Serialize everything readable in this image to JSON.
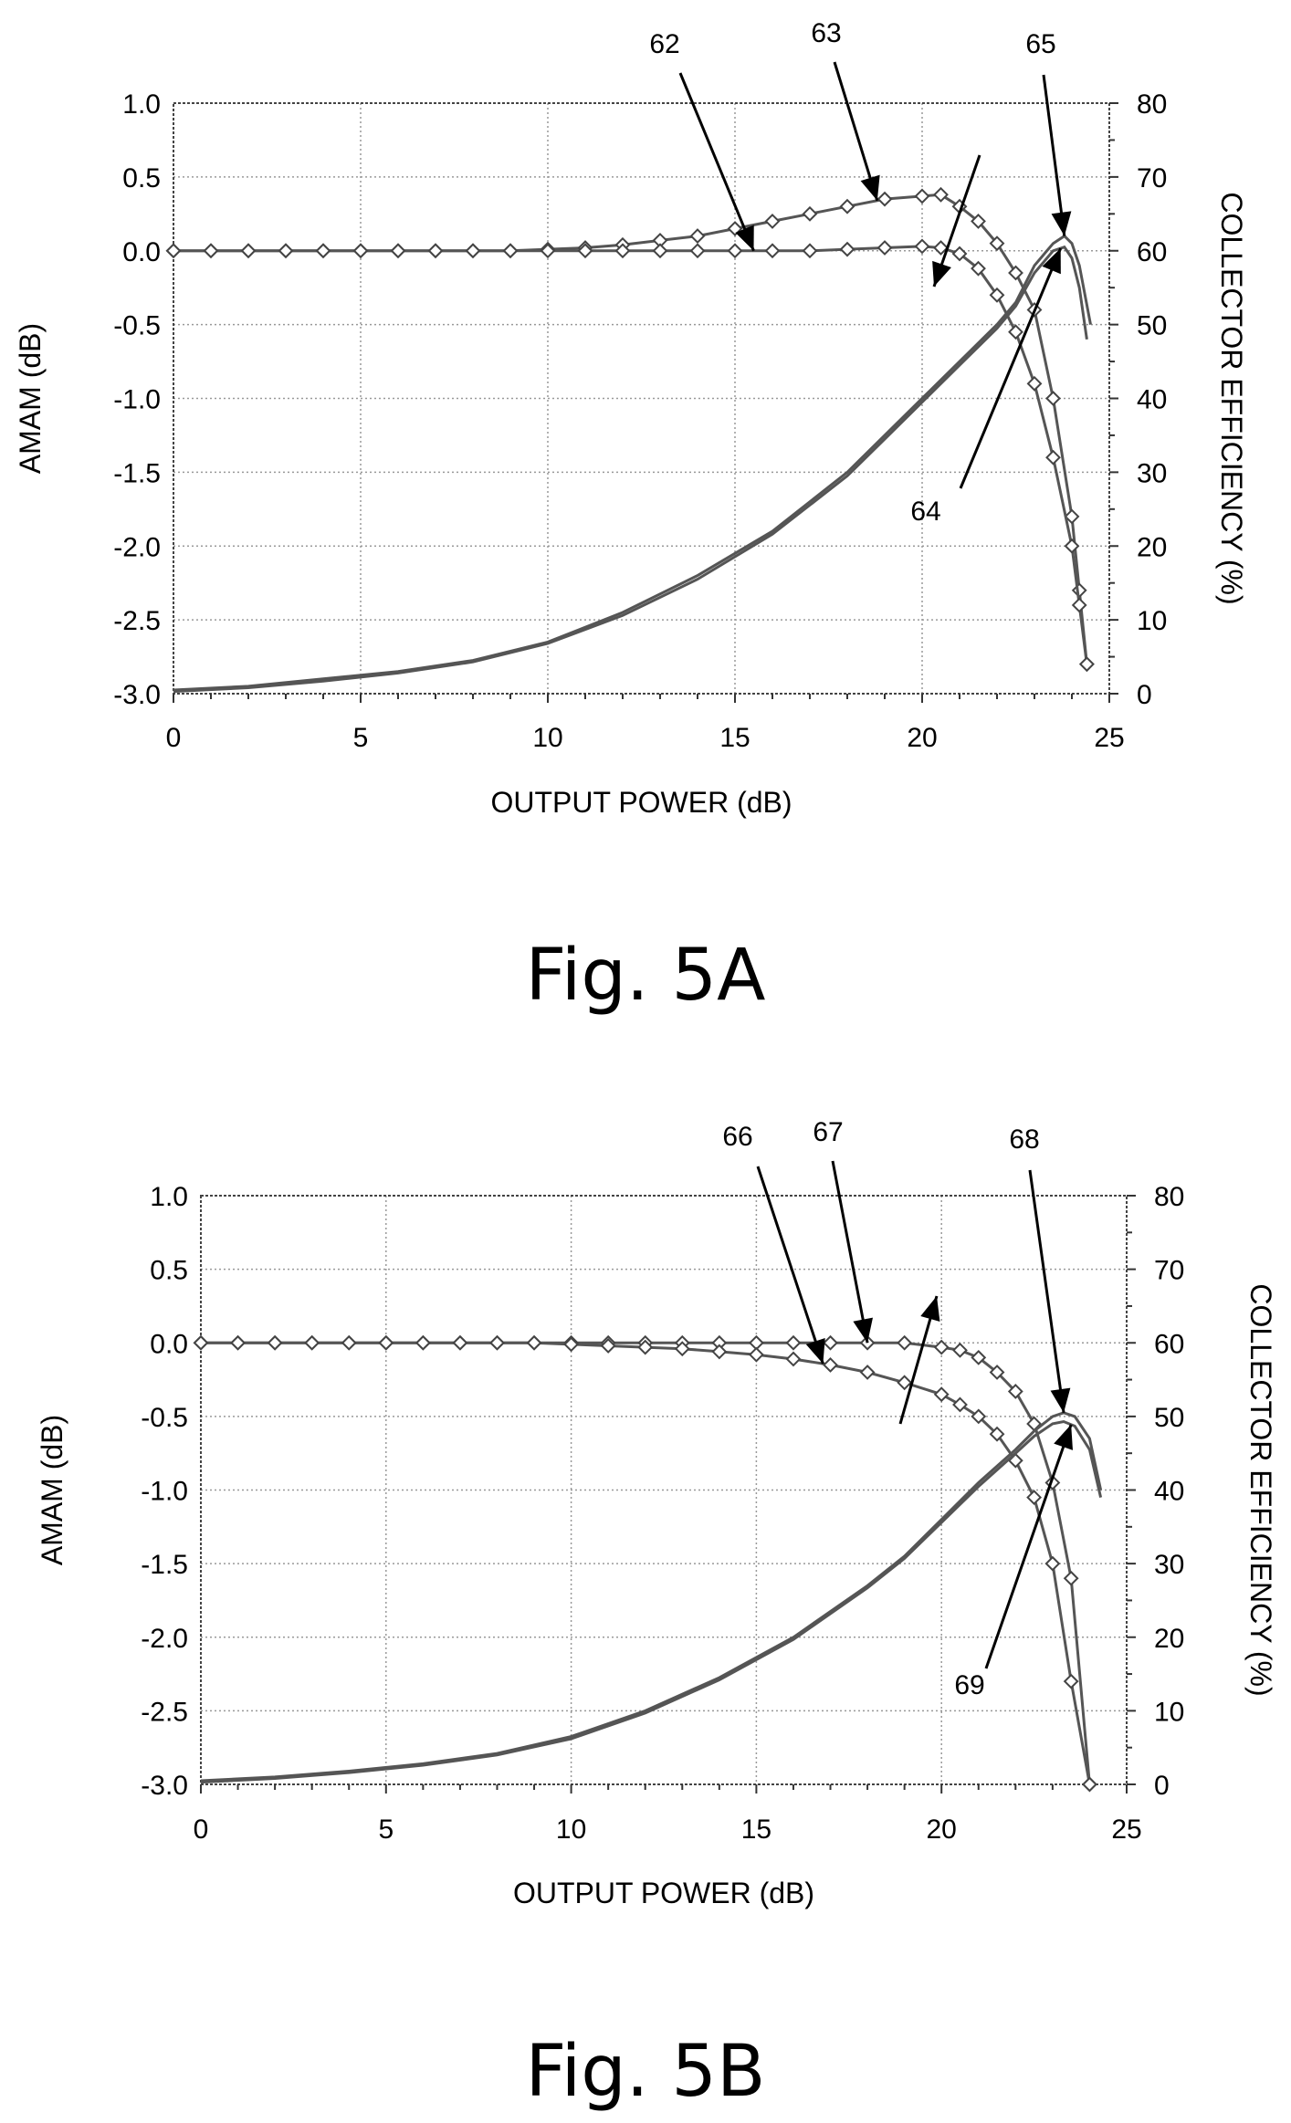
{
  "chart_data": [
    {
      "type": "line",
      "caption": "Fig. 5A",
      "xlabel": "OUTPUT POWER (dB)",
      "ylabel": "AMAM (dB)",
      "y2label": "COLLECTOR EFFICIENCY (%)",
      "xlim": [
        0,
        25
      ],
      "ylim": [
        -3.0,
        1.0
      ],
      "y2lim": [
        0,
        80
      ],
      "xticks": [
        "0",
        "5",
        "10",
        "15",
        "20",
        "25"
      ],
      "yticks": [
        "1.0",
        "0.5",
        "0.0",
        "-0.5",
        "-1.0",
        "-1.5",
        "-2.0",
        "-2.5",
        "-3.0"
      ],
      "y2ticks": [
        "80",
        "70",
        "60",
        "50",
        "40",
        "30",
        "20",
        "10",
        "0"
      ],
      "grid": true,
      "callouts": [
        "62",
        "63",
        "64",
        "65"
      ],
      "series": [
        {
          "axis": "left",
          "markers": true,
          "x": [
            0,
            1,
            2,
            3,
            4,
            5,
            6,
            7,
            8,
            9,
            10,
            11,
            12,
            13,
            14,
            15,
            16,
            17,
            18,
            19,
            20,
            20.5,
            21,
            21.5,
            22,
            22.5,
            23,
            23.5,
            24,
            24.2,
            24.4
          ],
          "y": [
            0,
            0,
            0,
            0,
            0,
            0,
            0,
            0,
            0,
            0,
            0.01,
            0.02,
            0.04,
            0.07,
            0.1,
            0.15,
            0.2,
            0.25,
            0.3,
            0.35,
            0.37,
            0.38,
            0.3,
            0.2,
            0.05,
            -0.15,
            -0.4,
            -1.0,
            -1.8,
            -2.3,
            -2.8
          ]
        },
        {
          "axis": "left",
          "markers": true,
          "x": [
            0,
            1,
            2,
            3,
            4,
            5,
            6,
            7,
            8,
            9,
            10,
            11,
            12,
            13,
            14,
            15,
            16,
            17,
            18,
            19,
            20,
            20.5,
            21,
            21.5,
            22,
            22.5,
            23,
            23.5,
            24,
            24.2,
            24.4
          ],
          "y": [
            0,
            0,
            0,
            0,
            0,
            0,
            0,
            0,
            0,
            0,
            0,
            0,
            0,
            0,
            0,
            0,
            0,
            0,
            0.01,
            0.02,
            0.03,
            0.02,
            -0.02,
            -0.12,
            -0.3,
            -0.55,
            -0.9,
            -1.4,
            -2.0,
            -2.4,
            -2.8
          ]
        },
        {
          "axis": "right",
          "markers": false,
          "x": [
            0,
            2,
            4,
            6,
            8,
            10,
            12,
            14,
            16,
            18,
            19,
            20,
            21,
            22,
            22.5,
            23,
            23.5,
            23.8,
            24,
            24.2,
            24.5
          ],
          "y": [
            0.5,
            1,
            2,
            3,
            4.5,
            7,
            11,
            16,
            22,
            30,
            35,
            40,
            45,
            50,
            53,
            58,
            61,
            62,
            61,
            58,
            50
          ]
        },
        {
          "axis": "right",
          "markers": false,
          "x": [
            0,
            2,
            4,
            6,
            8,
            10,
            12,
            14,
            16,
            18,
            19,
            20,
            21,
            22,
            22.5,
            23,
            23.5,
            23.8,
            24,
            24.2,
            24.4
          ],
          "y": [
            0.3,
            0.8,
            1.7,
            2.8,
            4.3,
            6.8,
            10.6,
            15.5,
            21.6,
            29.5,
            34.5,
            39.5,
            44.5,
            49.5,
            52.5,
            57,
            60,
            60.5,
            59,
            55,
            48
          ]
        }
      ]
    },
    {
      "type": "line",
      "caption": "Fig. 5B",
      "xlabel": "OUTPUT POWER (dB)",
      "ylabel": "AMAM (dB)",
      "y2label": "COLLECTOR EFFICIENCY (%)",
      "xlim": [
        0,
        25
      ],
      "ylim": [
        -3.0,
        1.0
      ],
      "y2lim": [
        0,
        80
      ],
      "xticks": [
        "0",
        "5",
        "10",
        "15",
        "20",
        "25"
      ],
      "yticks": [
        "1.0",
        "0.5",
        "0.0",
        "-0.5",
        "-1.0",
        "-1.5",
        "-2.0",
        "-2.5",
        "-3.0"
      ],
      "y2ticks": [
        "80",
        "70",
        "60",
        "50",
        "40",
        "30",
        "20",
        "10",
        "0"
      ],
      "grid": true,
      "callouts": [
        "66",
        "67",
        "68",
        "69"
      ],
      "series": [
        {
          "axis": "left",
          "markers": true,
          "x": [
            0,
            1,
            2,
            3,
            4,
            5,
            6,
            7,
            8,
            9,
            10,
            11,
            12,
            13,
            14,
            15,
            16,
            17,
            18,
            19,
            20,
            20.5,
            21,
            21.5,
            22,
            22.5,
            23,
            23.5,
            24
          ],
          "y": [
            0,
            0,
            0,
            0,
            0,
            0,
            0,
            0,
            0,
            0,
            0,
            0,
            0,
            0,
            0,
            0,
            0,
            0,
            0,
            0,
            -0.03,
            -0.05,
            -0.1,
            -0.2,
            -0.33,
            -0.55,
            -0.95,
            -1.6,
            -3.0
          ]
        },
        {
          "axis": "left",
          "markers": true,
          "x": [
            0,
            1,
            2,
            3,
            4,
            5,
            6,
            7,
            8,
            9,
            10,
            11,
            12,
            13,
            14,
            15,
            16,
            17,
            18,
            19,
            20,
            20.5,
            21,
            21.5,
            22,
            22.5,
            23,
            23.5,
            24
          ],
          "y": [
            0,
            0,
            0,
            0,
            0,
            0,
            0,
            0,
            0,
            0,
            -0.01,
            -0.02,
            -0.03,
            -0.04,
            -0.06,
            -0.08,
            -0.11,
            -0.15,
            -0.2,
            -0.27,
            -0.35,
            -0.42,
            -0.5,
            -0.62,
            -0.8,
            -1.05,
            -1.5,
            -2.3,
            -3.0
          ]
        },
        {
          "axis": "right",
          "markers": false,
          "x": [
            0,
            2,
            4,
            6,
            8,
            10,
            12,
            14,
            16,
            18,
            19,
            20,
            21,
            22,
            22.5,
            23,
            23.3,
            23.6,
            24,
            24.3
          ],
          "y": [
            0.5,
            1,
            1.8,
            2.8,
            4.2,
            6.5,
            10,
            14.5,
            20,
            27,
            31,
            36,
            41,
            45.5,
            48,
            50,
            50.5,
            50,
            47,
            40
          ]
        },
        {
          "axis": "right",
          "markers": false,
          "x": [
            0,
            2,
            4,
            6,
            8,
            10,
            12,
            14,
            16,
            18,
            19,
            20,
            21,
            22,
            22.5,
            23,
            23.3,
            23.6,
            24,
            24.3
          ],
          "y": [
            0.3,
            0.8,
            1.6,
            2.6,
            4,
            6.2,
            9.7,
            14.2,
            19.7,
            26.7,
            30.7,
            35.6,
            40.5,
            45,
            47.3,
            49,
            49.3,
            48.7,
            45.5,
            39
          ]
        }
      ]
    }
  ]
}
